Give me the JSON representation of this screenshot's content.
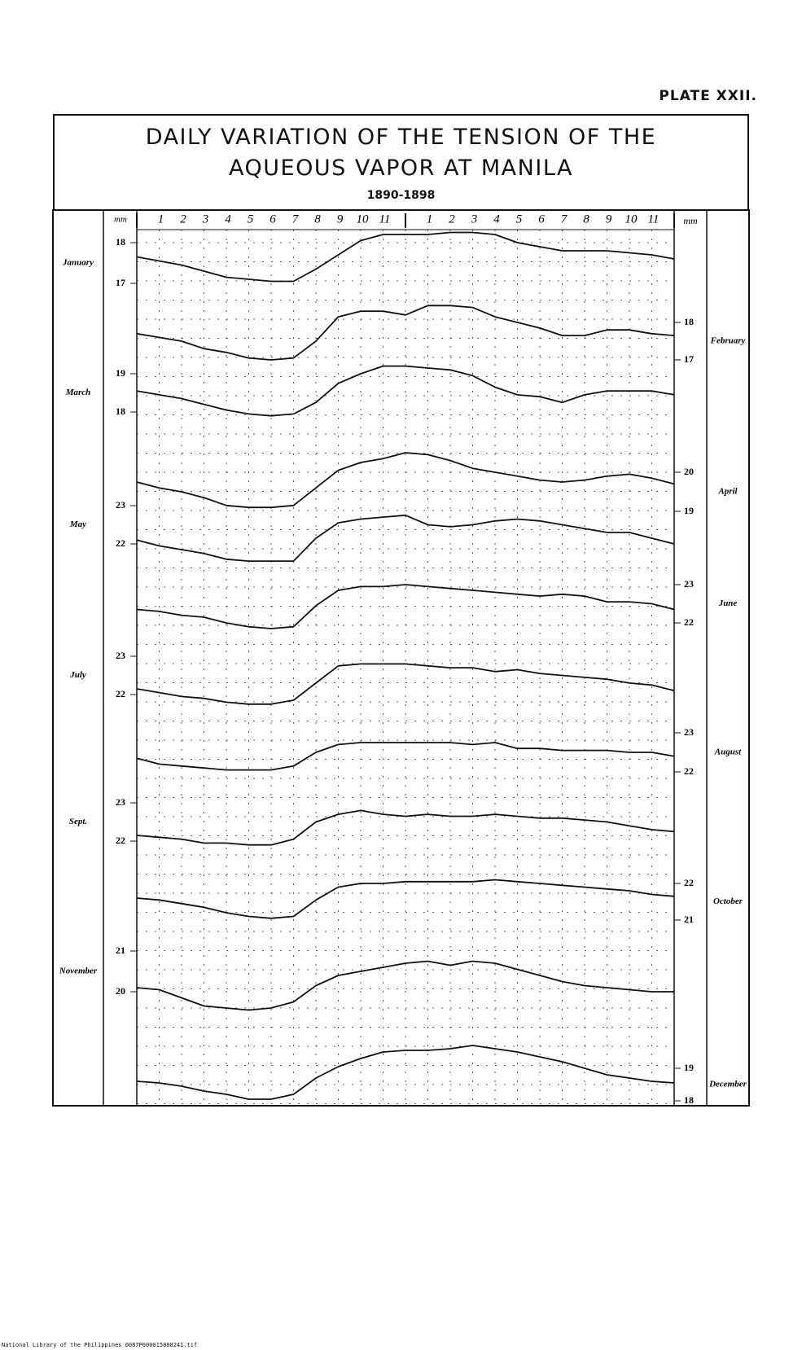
{
  "plate": "PLATE XXII.",
  "footer": "National Library of the Philippines    0087P000015888241.tif",
  "chart_data": {
    "type": "line",
    "title": "DAILY VARIATION OF THE TENSION OF THE AQUEOUS VAPOR AT MANILA",
    "subtitle": "1890-1898",
    "y_unit": "mm",
    "categories": [
      null,
      "1",
      "2",
      "3",
      "4",
      "5",
      "6",
      "7",
      "8",
      "9",
      "10",
      "11",
      null,
      "1",
      "2",
      "3",
      "4",
      "5",
      "6",
      "7",
      "8",
      "9",
      "10",
      "11",
      null
    ],
    "grid": true,
    "series": [
      {
        "name": "January",
        "color": "#111",
        "yticks": [
          18,
          17
        ],
        "values": [
          17.65,
          17.55,
          17.45,
          17.3,
          17.15,
          17.1,
          17.05,
          17.05,
          17.35,
          17.7,
          18.05,
          18.2,
          18.2,
          18.2,
          18.25,
          18.25,
          18.2,
          18.0,
          17.9,
          17.8,
          17.8,
          17.8,
          17.75,
          17.7,
          17.6
        ]
      },
      {
        "name": "February",
        "color": "#111",
        "yticks": [
          18,
          17
        ],
        "values": [
          17.7,
          17.6,
          17.5,
          17.3,
          17.2,
          17.05,
          17.0,
          17.05,
          17.5,
          18.15,
          18.3,
          18.3,
          18.2,
          18.45,
          18.45,
          18.4,
          18.15,
          18.0,
          17.85,
          17.65,
          17.65,
          17.8,
          17.8,
          17.7,
          17.65
        ]
      },
      {
        "name": "March",
        "color": "#111",
        "yticks": [
          19,
          18
        ],
        "values": [
          18.55,
          18.45,
          18.35,
          18.2,
          18.05,
          17.95,
          17.9,
          17.95,
          18.25,
          18.75,
          19.0,
          19.2,
          19.2,
          19.15,
          19.1,
          18.95,
          18.65,
          18.45,
          18.4,
          18.25,
          18.45,
          18.55,
          18.55,
          18.55,
          18.45
        ]
      },
      {
        "name": "April",
        "color": "#111",
        "yticks": [
          20,
          19
        ],
        "values": [
          19.75,
          19.6,
          19.5,
          19.35,
          19.15,
          19.1,
          19.1,
          19.15,
          19.6,
          20.05,
          20.25,
          20.35,
          20.5,
          20.45,
          20.3,
          20.1,
          20.0,
          19.9,
          19.8,
          19.75,
          19.8,
          19.9,
          19.95,
          19.85,
          19.7
        ]
      },
      {
        "name": "May",
        "color": "#111",
        "yticks": [
          23,
          22
        ],
        "values": [
          22.1,
          21.95,
          21.85,
          21.75,
          21.6,
          21.55,
          21.55,
          21.55,
          22.15,
          22.55,
          22.65,
          22.7,
          22.75,
          22.5,
          22.45,
          22.5,
          22.6,
          22.65,
          22.6,
          22.5,
          22.4,
          22.3,
          22.3,
          22.15,
          22.0
        ]
      },
      {
        "name": "June",
        "color": "#111",
        "yticks": [
          23,
          22
        ],
        "values": [
          22.35,
          22.3,
          22.2,
          22.15,
          22.0,
          21.9,
          21.85,
          21.9,
          22.45,
          22.85,
          22.95,
          22.95,
          23.0,
          22.95,
          22.9,
          22.85,
          22.8,
          22.75,
          22.7,
          22.75,
          22.7,
          22.55,
          22.55,
          22.5,
          22.35
        ]
      },
      {
        "name": "July",
        "color": "#111",
        "yticks": [
          23,
          22
        ],
        "values": [
          22.15,
          22.05,
          21.95,
          21.9,
          21.8,
          21.75,
          21.75,
          21.85,
          22.3,
          22.75,
          22.8,
          22.8,
          22.8,
          22.75,
          22.7,
          22.7,
          22.6,
          22.65,
          22.55,
          22.5,
          22.45,
          22.4,
          22.3,
          22.25,
          22.1
        ]
      },
      {
        "name": "August",
        "color": "#111",
        "yticks": [
          23,
          22
        ],
        "values": [
          22.35,
          22.2,
          22.15,
          22.1,
          22.05,
          22.05,
          22.05,
          22.15,
          22.5,
          22.7,
          22.75,
          22.75,
          22.75,
          22.75,
          22.75,
          22.7,
          22.75,
          22.6,
          22.6,
          22.55,
          22.55,
          22.55,
          22.5,
          22.5,
          22.4
        ]
      },
      {
        "name": "Sept.",
        "color": "#111",
        "yticks": [
          23,
          22
        ],
        "values": [
          22.15,
          22.1,
          22.05,
          21.95,
          21.95,
          21.9,
          21.9,
          22.05,
          22.5,
          22.7,
          22.8,
          22.7,
          22.65,
          22.7,
          22.65,
          22.65,
          22.7,
          22.65,
          22.6,
          22.6,
          22.55,
          22.5,
          22.4,
          22.3,
          22.25
        ]
      },
      {
        "name": "October",
        "color": "#111",
        "yticks": [
          22,
          21
        ],
        "values": [
          21.6,
          21.55,
          21.45,
          21.35,
          21.2,
          21.1,
          21.05,
          21.1,
          21.55,
          21.9,
          22.0,
          22.0,
          22.05,
          22.05,
          22.05,
          22.05,
          22.1,
          22.05,
          22.0,
          21.95,
          21.9,
          21.85,
          21.8,
          21.7,
          21.65
        ]
      },
      {
        "name": "November",
        "color": "#111",
        "yticks": [
          21,
          20
        ],
        "values": [
          20.1,
          20.05,
          19.85,
          19.65,
          19.6,
          19.55,
          19.6,
          19.75,
          20.15,
          20.4,
          20.5,
          20.6,
          20.7,
          20.75,
          20.65,
          20.75,
          20.7,
          20.55,
          20.4,
          20.25,
          20.15,
          20.1,
          20.05,
          20.0,
          20.0
        ]
      },
      {
        "name": "December",
        "color": "#111",
        "yticks": [
          19,
          18
        ],
        "values": [
          18.6,
          18.55,
          18.45,
          18.3,
          18.2,
          18.05,
          18.05,
          18.2,
          18.7,
          19.05,
          19.3,
          19.5,
          19.55,
          19.55,
          19.6,
          19.7,
          19.6,
          19.5,
          19.35,
          19.2,
          19.0,
          18.8,
          18.7,
          18.6,
          18.55
        ]
      }
    ]
  }
}
